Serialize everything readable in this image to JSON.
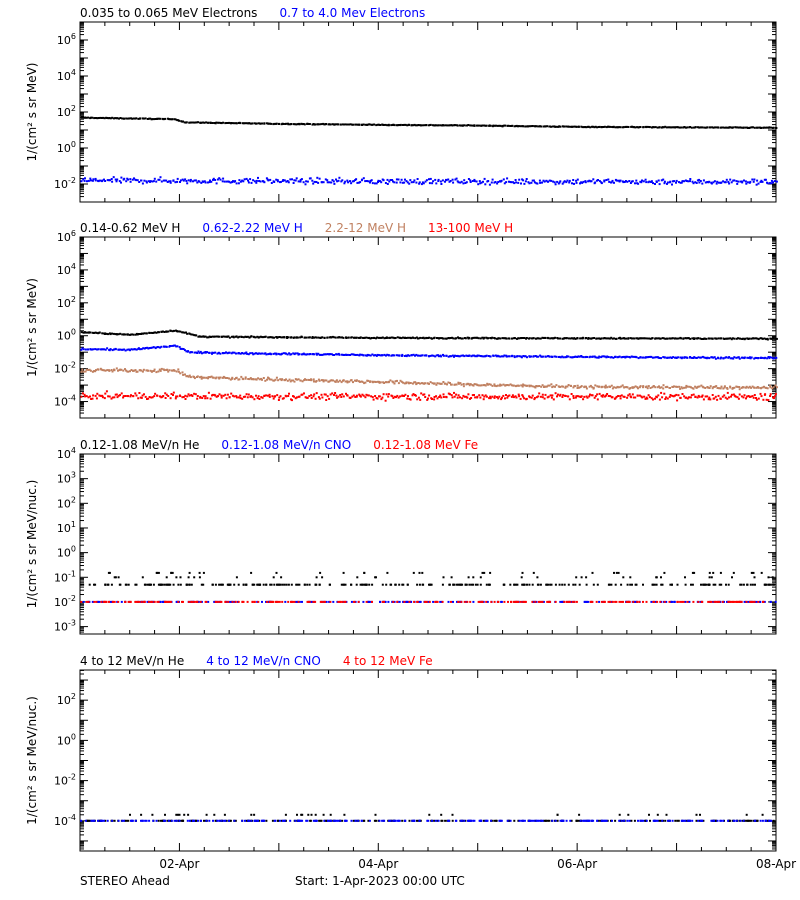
{
  "footer": {
    "spacecraft": "STEREO Ahead",
    "start_label": "Start:  1-Apr-2023 00:00 UTC"
  },
  "x_axis": {
    "range_days": [
      1,
      8
    ],
    "tick_days": [
      2,
      4,
      6,
      8
    ],
    "tick_labels": [
      "02-Apr",
      "04-Apr",
      "06-Apr",
      "08-Apr"
    ],
    "minor_step_days": 0.25
  },
  "chart_data": [
    {
      "type": "scatter",
      "ylabel": "1/(cm² s sr MeV)",
      "log_y": true,
      "ylim_exp": [
        -3,
        7
      ],
      "tick_exponents": [
        -2,
        0,
        2,
        4,
        6
      ],
      "series": [
        {
          "name": "0.035 to 0.065 MeV Electrons",
          "color": "#000000",
          "profile": [
            [
              1,
              55
            ],
            [
              1.95,
              45
            ],
            [
              2.05,
              30
            ],
            [
              3,
              25
            ],
            [
              4,
              22
            ],
            [
              5,
              20
            ],
            [
              6,
              17
            ],
            [
              7,
              16
            ],
            [
              8,
              15
            ]
          ],
          "scatter_dex": 0.03
        },
        {
          "name": "0.7 to 4.0 Mev Electrons",
          "color": "#0000ff",
          "profile": [
            [
              1,
              0.018
            ],
            [
              4,
              0.016
            ],
            [
              8,
              0.015
            ]
          ],
          "scatter_dex": 0.22
        }
      ]
    },
    {
      "type": "scatter",
      "ylabel": "1/(cm² s sr MeV)",
      "log_y": true,
      "ylim_exp": [
        -5,
        6
      ],
      "tick_exponents": [
        -4,
        -2,
        0,
        2,
        4,
        6
      ],
      "series": [
        {
          "name": "0.14-0.62 MeV H",
          "color": "#000000",
          "profile": [
            [
              1,
              1.9
            ],
            [
              1.5,
              1.3
            ],
            [
              1.95,
              2.4
            ],
            [
              2.2,
              1.0
            ],
            [
              4,
              0.85
            ],
            [
              6,
              0.8
            ],
            [
              8,
              0.75
            ]
          ],
          "scatter_dex": 0.05
        },
        {
          "name": "0.62-2.22 MeV H",
          "color": "#0000ff",
          "profile": [
            [
              1,
              0.18
            ],
            [
              1.5,
              0.16
            ],
            [
              1.95,
              0.28
            ],
            [
              2.1,
              0.11
            ],
            [
              4,
              0.075
            ],
            [
              6,
              0.06
            ],
            [
              8,
              0.05
            ]
          ],
          "scatter_dex": 0.07
        },
        {
          "name": "2.2-12 MeV H",
          "color": "#c08060",
          "profile": [
            [
              1,
              0.009
            ],
            [
              1.95,
              0.009
            ],
            [
              2.1,
              0.0035
            ],
            [
              3,
              0.0025
            ],
            [
              4,
              0.0018
            ],
            [
              5,
              0.0012
            ],
            [
              6,
              0.0009
            ],
            [
              8,
              0.0008
            ]
          ],
          "scatter_dex": 0.14
        },
        {
          "name": "13-100 MeV H",
          "color": "#ff0000",
          "profile": [
            [
              1,
              0.00025
            ],
            [
              8,
              0.00022
            ]
          ],
          "scatter_dex": 0.28
        }
      ]
    },
    {
      "type": "scatter",
      "ylabel": "1/(cm² s sr MeV/nuc.)",
      "log_y": true,
      "ylim_exp": [
        -3.3,
        4
      ],
      "tick_exponents": [
        -3,
        -2,
        -1,
        0,
        1,
        2,
        3,
        4
      ],
      "series": [
        {
          "name": "0.12-1.08 MeV/n He",
          "color": "#000000",
          "levels": [
            0.05,
            0.1,
            0.15
          ]
        },
        {
          "name": "0.12-1.08 MeV/n CNO",
          "color": "#0000ff",
          "levels": [
            0.01
          ]
        },
        {
          "name": "0.12-1.08 MeV Fe",
          "color": "#ff0000",
          "levels": [
            0.01
          ]
        }
      ]
    },
    {
      "type": "scatter",
      "ylabel": "1/(cm² s sr MeV/nuc.)",
      "log_y": true,
      "ylim_exp": [
        -5.5,
        3.5
      ],
      "tick_exponents": [
        -4,
        -2,
        0,
        2
      ],
      "series": [
        {
          "name": "4 to 12 MeV/n He",
          "color": "#000000",
          "levels": [
            0.0001,
            0.0002
          ]
        },
        {
          "name": "4 to 12 MeV/n CNO",
          "color": "#0000ff",
          "levels": [
            0.0001
          ]
        },
        {
          "name": "4 to 12 MeV Fe",
          "color": "#ff0000",
          "levels": []
        }
      ]
    }
  ]
}
